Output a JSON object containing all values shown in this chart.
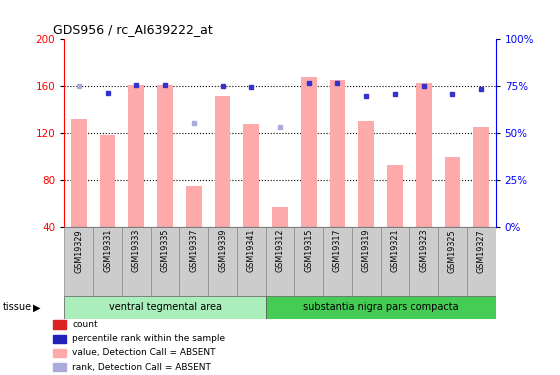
{
  "title": "GDS956 / rc_AI639222_at",
  "samples": [
    "GSM19329",
    "GSM19331",
    "GSM19333",
    "GSM19335",
    "GSM19337",
    "GSM19339",
    "GSM19341",
    "GSM19312",
    "GSM19315",
    "GSM19317",
    "GSM19319",
    "GSM19321",
    "GSM19323",
    "GSM19325",
    "GSM19327"
  ],
  "bar_values": [
    132,
    118,
    161,
    161,
    75,
    152,
    128,
    57,
    168,
    165,
    130,
    93,
    163,
    100,
    125
  ],
  "dot_values": [
    160,
    154,
    161,
    161,
    129,
    160,
    159,
    125,
    163,
    163,
    152,
    153,
    160,
    153,
    158
  ],
  "bar_absent": [
    true,
    true,
    true,
    true,
    true,
    true,
    true,
    true,
    true,
    true,
    true,
    true,
    true,
    true,
    true
  ],
  "dot_absent": [
    true,
    false,
    false,
    false,
    true,
    false,
    false,
    true,
    false,
    false,
    false,
    false,
    false,
    false,
    false
  ],
  "ylim_left": [
    40,
    200
  ],
  "ylim_right": [
    0,
    100
  ],
  "yticks_left": [
    40,
    80,
    120,
    160,
    200
  ],
  "yticks_right": [
    0,
    25,
    50,
    75,
    100
  ],
  "ytick_labels_right": [
    "0%",
    "25%",
    "50%",
    "75%",
    "100%"
  ],
  "group1_label": "ventral tegmental area",
  "group2_label": "substantia nigra pars compacta",
  "group1_count": 7,
  "group2_count": 8,
  "bar_color_absent": "#ffaaaa",
  "dot_color_present": "#3333cc",
  "dot_color_absent": "#aaaadd",
  "bar_width": 0.55,
  "grid_color": "black",
  "group_bar_color1": "#aaeebb",
  "group_bar_color2": "#44cc55",
  "tissue_label": "tissue",
  "legend_items": [
    {
      "label": "count",
      "color": "#dd2222"
    },
    {
      "label": "percentile rank within the sample",
      "color": "#2222bb"
    },
    {
      "label": "value, Detection Call = ABSENT",
      "color": "#ffaaaa"
    },
    {
      "label": "rank, Detection Call = ABSENT",
      "color": "#aaaadd"
    }
  ]
}
